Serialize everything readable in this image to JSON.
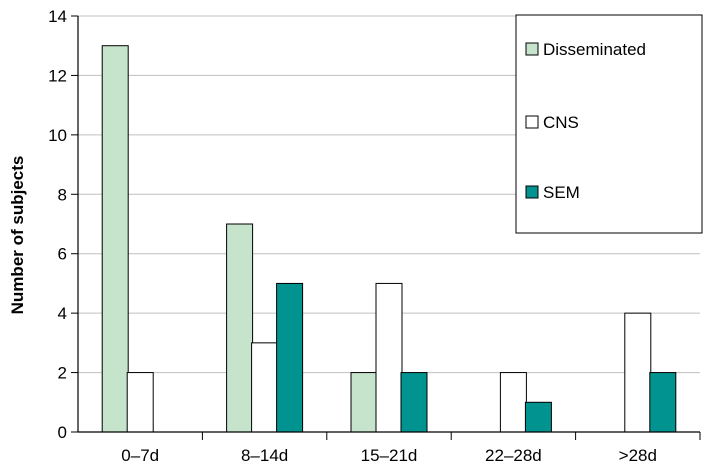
{
  "chart_data": {
    "type": "bar",
    "categories": [
      "0–7d",
      "8–14d",
      "15–21d",
      "22–28d",
      ">28d"
    ],
    "series": [
      {
        "name": "Disseminated",
        "values": [
          13,
          7,
          2,
          0,
          0
        ],
        "color": "#c6e4cc"
      },
      {
        "name": "CNS",
        "values": [
          2,
          3,
          5,
          2,
          4
        ],
        "color": "#ffffff"
      },
      {
        "name": "SEM",
        "values": [
          0,
          5,
          2,
          1,
          2
        ],
        "color": "#00938f"
      }
    ],
    "title": "",
    "xlabel": "",
    "ylabel": "Number of subjects",
    "ylim": [
      0,
      14
    ],
    "yticks": [
      0,
      2,
      4,
      6,
      8,
      10,
      12,
      14
    ],
    "grid": "horizontal",
    "legend": "top-right",
    "bar_outline_color": "#000000",
    "grid_color": "#c0c0c0"
  }
}
